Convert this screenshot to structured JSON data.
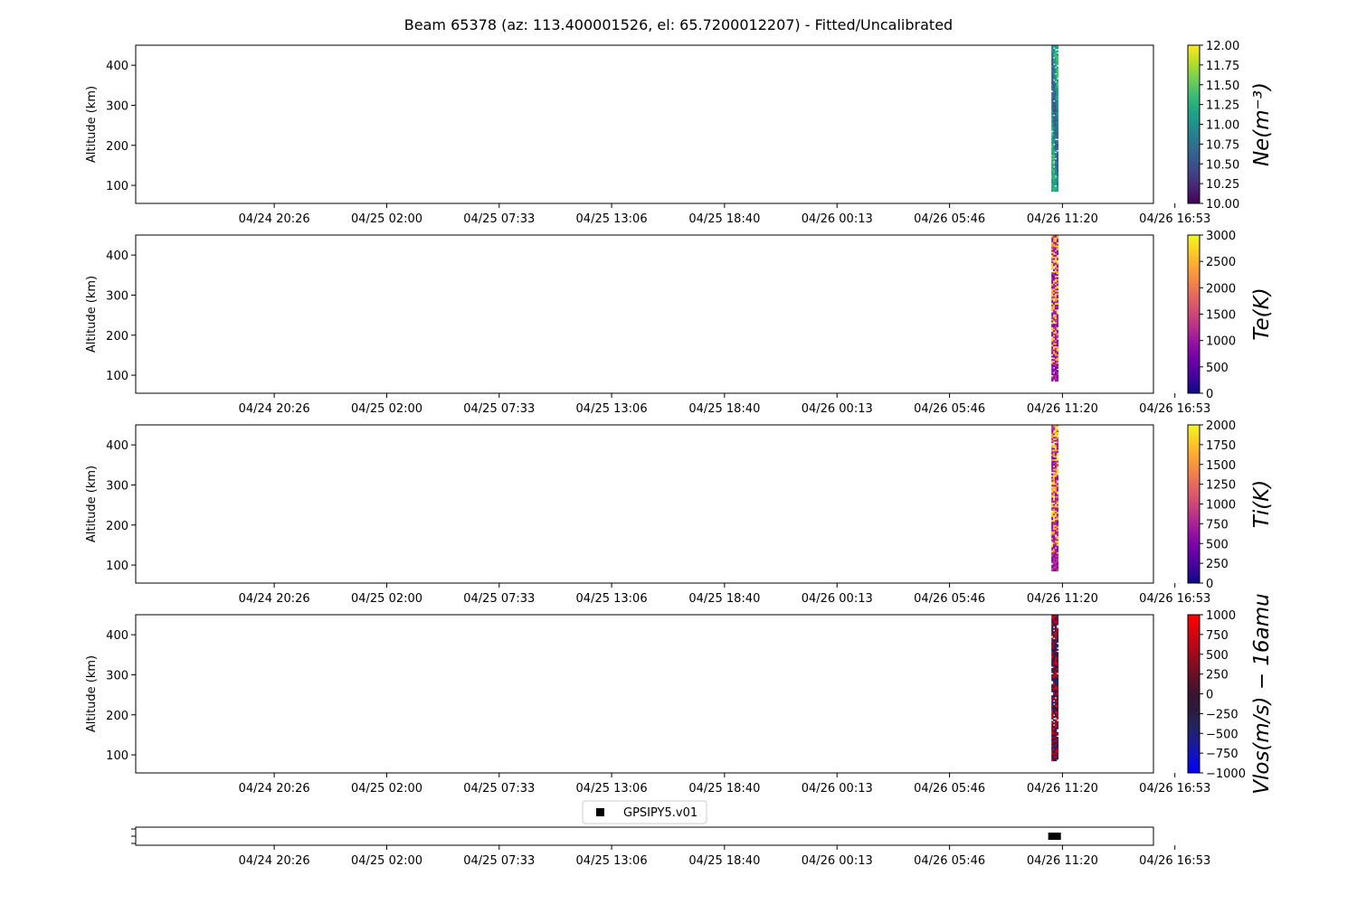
{
  "title": "Beam 65378 (az: 113.400001526, el: 65.7200012207) - Fitted/Uncalibrated",
  "chart_data": {
    "type": "heatmap",
    "x_ticks": [
      "04/24 20:26",
      "04/25 02:00",
      "04/25 07:33",
      "04/25 13:06",
      "04/25 18:40",
      "04/26 00:13",
      "04/26 05:46",
      "04/26 11:20",
      "04/26 16:53"
    ],
    "x_tick_days": [
      0,
      0.23125,
      0.46232,
      0.69338,
      0.92535,
      1.1566,
      1.38785,
      1.61986,
      1.85097
    ],
    "xlim_days": [
      -0.2847,
      1.8069
    ],
    "data_time_window": [
      "04/26 10:50",
      "04/26 11:11"
    ],
    "data_time_window_days": [
      1.5972,
      1.6111
    ],
    "panels": [
      {
        "id": "ne",
        "ylabel": "Altitude (km)",
        "cbar_label": "Ne(m⁻³)",
        "ylim": [
          55,
          450
        ],
        "yticks": [
          100,
          200,
          300,
          400
        ],
        "altitude_range_km": [
          85,
          450
        ],
        "clim": [
          10,
          12
        ],
        "cbar_ticks": [
          "10.00",
          "10.25",
          "10.50",
          "10.75",
          "11.00",
          "11.25",
          "11.50",
          "11.75",
          "12.00"
        ],
        "cmap": [
          "#440154",
          "#482475",
          "#414487",
          "#355f8d",
          "#2a788e",
          "#21918c",
          "#22a884",
          "#44bf70",
          "#7ad151",
          "#bddf26",
          "#fde725"
        ]
      },
      {
        "id": "te",
        "ylabel": "Altitude (km)",
        "cbar_label": "Te(K)",
        "ylim": [
          55,
          450
        ],
        "yticks": [
          100,
          200,
          300,
          400
        ],
        "altitude_range_km": [
          85,
          450
        ],
        "clim": [
          0,
          3000
        ],
        "cbar_ticks": [
          "0",
          "500",
          "1000",
          "1500",
          "2000",
          "2500",
          "3000"
        ],
        "cmap": [
          "#0d0887",
          "#41049d",
          "#6a00a8",
          "#8f0da4",
          "#b12a90",
          "#cc4778",
          "#e16462",
          "#f2844b",
          "#fca636",
          "#fcce25",
          "#f0f921"
        ]
      },
      {
        "id": "ti",
        "ylabel": "Altitude (km)",
        "cbar_label": "Ti(K)",
        "ylim": [
          55,
          450
        ],
        "yticks": [
          100,
          200,
          300,
          400
        ],
        "altitude_range_km": [
          85,
          450
        ],
        "clim": [
          0,
          2000
        ],
        "cbar_ticks": [
          "0",
          "250",
          "500",
          "750",
          "1000",
          "1250",
          "1500",
          "1750",
          "2000"
        ],
        "cmap": [
          "#0d0887",
          "#41049d",
          "#6a00a8",
          "#8f0da4",
          "#b12a90",
          "#cc4778",
          "#e16462",
          "#f2844b",
          "#fca636",
          "#fcce25",
          "#f0f921"
        ]
      },
      {
        "id": "vlos",
        "ylabel": "Altitude (km)",
        "cbar_label": "Vlos(m/s) − 16amu",
        "ylim": [
          55,
          450
        ],
        "yticks": [
          100,
          200,
          300,
          400
        ],
        "altitude_range_km": [
          85,
          450
        ],
        "clim": [
          -1000,
          1000
        ],
        "cbar_ticks": [
          "−1000",
          "−750",
          "−500",
          "−250",
          "0",
          "250",
          "500",
          "750",
          "1000"
        ],
        "cmap": [
          "#0000ff",
          "#1010c8",
          "#1c1c90",
          "#24245c",
          "#2c1a3c",
          "#3a1430",
          "#601028",
          "#8a0c20",
          "#b40818",
          "#dc040c",
          "#ff0000"
        ]
      }
    ],
    "legend": {
      "label": "GPSIPY5.v01",
      "marker": "square",
      "color": "#000000",
      "placement": "upper-center"
    },
    "bottom_markers_days": [
      1.5962,
      1.5972,
      1.5993,
      1.6014,
      1.6035,
      1.6056,
      1.6076,
      1.6097,
      1.6111
    ]
  }
}
